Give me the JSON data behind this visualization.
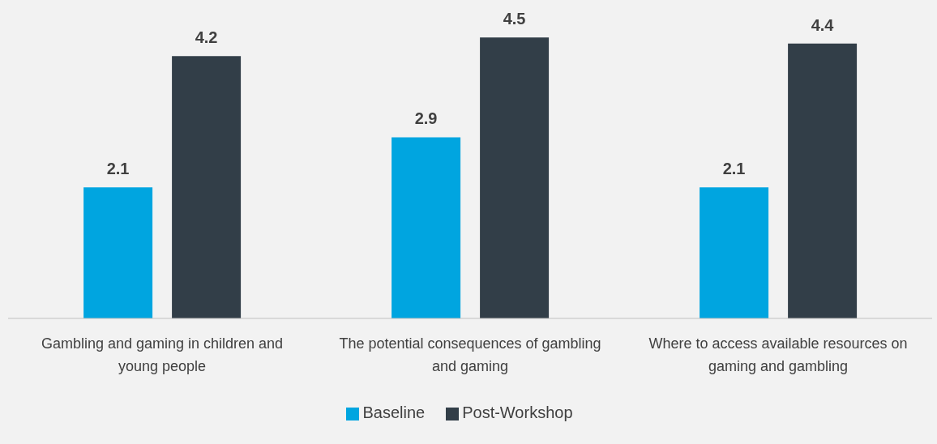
{
  "chart_data": {
    "type": "bar",
    "categories": [
      "Gambling and gaming in children and young people",
      "The potential consequences of gambling and gaming",
      "Where to access available resources on gaming and gambling"
    ],
    "series": [
      {
        "name": "Baseline",
        "color": "#00a5e0",
        "values": [
          2.1,
          2.9,
          2.1
        ]
      },
      {
        "name": "Post-Workshop",
        "color": "#323e48",
        "values": [
          4.2,
          4.5,
          4.4
        ]
      }
    ],
    "data_labels": true,
    "grid": false,
    "legend": "bottom"
  }
}
